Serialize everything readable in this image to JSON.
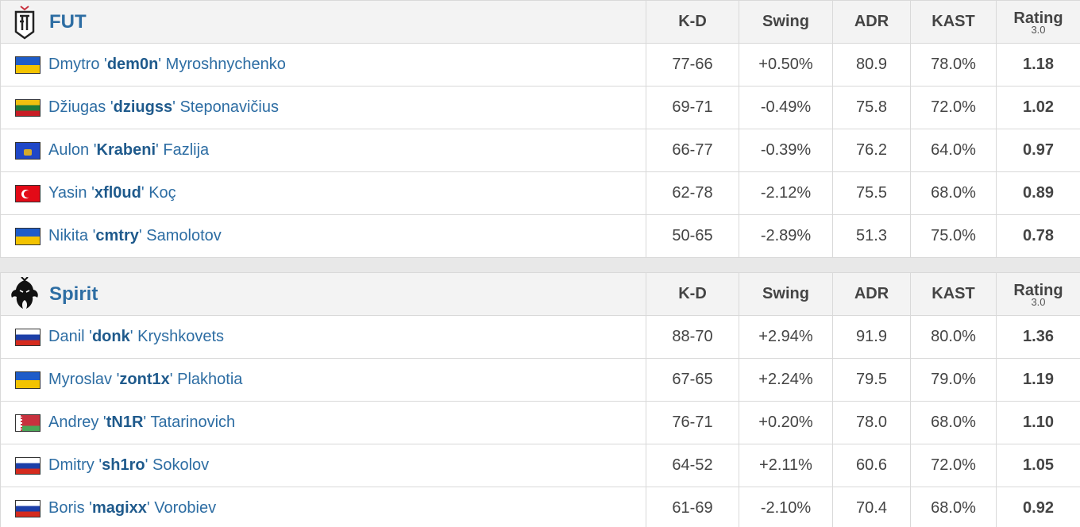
{
  "columns": {
    "kd": "K-D",
    "swing": "Swing",
    "adr": "ADR",
    "kast": "KAST",
    "rating": "Rating",
    "rating_version": "3.0"
  },
  "teams": [
    {
      "name": "FUT",
      "logo_icon": "fut-shield-logo",
      "players": [
        {
          "flag": "ukraine-flag",
          "first": "Dmytro",
          "nick": "dem0n",
          "last": "Myroshnychenko",
          "kd": "77-66",
          "swing": "+0.50%",
          "adr": "80.9",
          "kast": "78.0%",
          "rating": "1.18"
        },
        {
          "flag": "lithuania-flag",
          "first": "Džiugas",
          "nick": "dziugss",
          "last": "Steponavičius",
          "kd": "69-71",
          "swing": "-0.49%",
          "adr": "75.8",
          "kast": "72.0%",
          "rating": "1.02"
        },
        {
          "flag": "kosovo-flag",
          "first": "Aulon",
          "nick": "Krabeni",
          "last": "Fazlija",
          "kd": "66-77",
          "swing": "-0.39%",
          "adr": "76.2",
          "kast": "64.0%",
          "rating": "0.97"
        },
        {
          "flag": "turkey-flag",
          "first": "Yasin",
          "nick": "xfl0ud",
          "last": "Koç",
          "kd": "62-78",
          "swing": "-2.12%",
          "adr": "75.5",
          "kast": "68.0%",
          "rating": "0.89"
        },
        {
          "flag": "ukraine-flag",
          "first": "Nikita",
          "nick": "cmtry",
          "last": "Samolotov",
          "kd": "50-65",
          "swing": "-2.89%",
          "adr": "51.3",
          "kast": "75.0%",
          "rating": "0.78"
        }
      ]
    },
    {
      "name": "Spirit",
      "logo_icon": "spirit-dragon-logo",
      "players": [
        {
          "flag": "russia-flag",
          "first": "Danil",
          "nick": "donk",
          "last": "Kryshkovets",
          "kd": "88-70",
          "swing": "+2.94%",
          "adr": "91.9",
          "kast": "80.0%",
          "rating": "1.36"
        },
        {
          "flag": "ukraine-flag",
          "first": "Myroslav",
          "nick": "zont1x",
          "last": "Plakhotia",
          "kd": "67-65",
          "swing": "+2.24%",
          "adr": "79.5",
          "kast": "79.0%",
          "rating": "1.19"
        },
        {
          "flag": "belarus-flag",
          "first": "Andrey",
          "nick": "tN1R",
          "last": "Tatarinovich",
          "kd": "76-71",
          "swing": "+0.20%",
          "adr": "78.0",
          "kast": "68.0%",
          "rating": "1.10"
        },
        {
          "flag": "russia-flag",
          "first": "Dmitry",
          "nick": "sh1ro",
          "last": "Sokolov",
          "kd": "64-52",
          "swing": "+2.11%",
          "adr": "60.6",
          "kast": "72.0%",
          "rating": "1.05"
        },
        {
          "flag": "russia-flag",
          "first": "Boris",
          "nick": "magixx",
          "last": "Vorobiev",
          "kd": "61-69",
          "swing": "-2.10%",
          "adr": "70.4",
          "kast": "68.0%",
          "rating": "0.92"
        }
      ]
    }
  ],
  "colors": {
    "positive": "#2aa02a",
    "negative": "#d62828",
    "link": "#2d6da3"
  }
}
